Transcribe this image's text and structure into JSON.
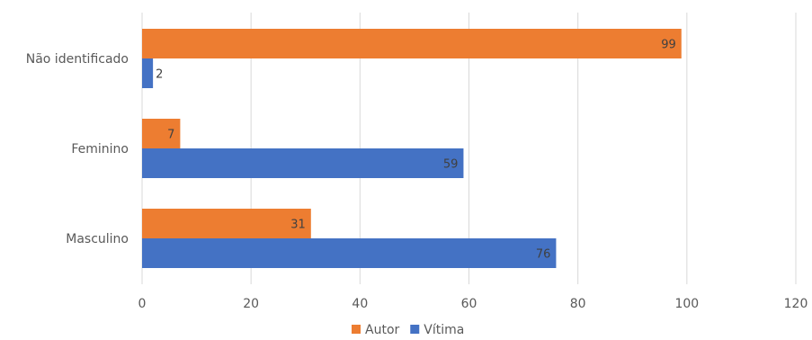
{
  "chart_data": {
    "type": "bar",
    "orientation": "horizontal",
    "categories": [
      "Não identificado",
      "Feminino",
      "Masculino"
    ],
    "series": [
      {
        "name": "Autor",
        "values": [
          99,
          7,
          31
        ],
        "color": "#ED7D31"
      },
      {
        "name": "Vítima",
        "values": [
          2,
          59,
          76
        ],
        "color": "#4472C4"
      }
    ],
    "xlim": [
      0,
      120
    ],
    "xticks": [
      0,
      20,
      40,
      60,
      80,
      100,
      120
    ],
    "grid": true,
    "legend_position": "bottom"
  }
}
